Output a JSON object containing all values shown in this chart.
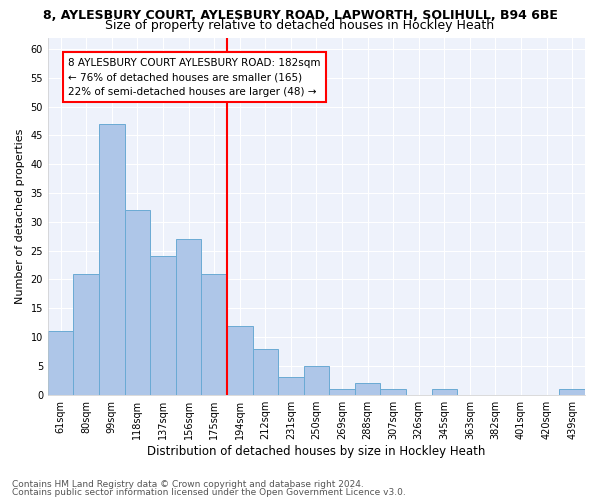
{
  "title1": "8, AYLESBURY COURT, AYLESBURY ROAD, LAPWORTH, SOLIHULL, B94 6BE",
  "title2": "Size of property relative to detached houses in Hockley Heath",
  "xlabel": "Distribution of detached houses by size in Hockley Heath",
  "ylabel": "Number of detached properties",
  "footer1": "Contains HM Land Registry data © Crown copyright and database right 2024.",
  "footer2": "Contains public sector information licensed under the Open Government Licence v3.0.",
  "categories": [
    "61sqm",
    "80sqm",
    "99sqm",
    "118sqm",
    "137sqm",
    "156sqm",
    "175sqm",
    "194sqm",
    "212sqm",
    "231sqm",
    "250sqm",
    "269sqm",
    "288sqm",
    "307sqm",
    "326sqm",
    "345sqm",
    "363sqm",
    "382sqm",
    "401sqm",
    "420sqm",
    "439sqm"
  ],
  "values": [
    11,
    21,
    47,
    32,
    24,
    27,
    21,
    12,
    8,
    3,
    5,
    1,
    2,
    1,
    0,
    1,
    0,
    0,
    0,
    0,
    1
  ],
  "bar_color": "#aec6e8",
  "bar_edge_color": "#6aaad4",
  "vline_color": "red",
  "vline_pos": 6.5,
  "annotation_text": "8 AYLESBURY COURT AYLESBURY ROAD: 182sqm\n← 76% of detached houses are smaller (165)\n22% of semi-detached houses are larger (48) →",
  "annotation_box_color": "white",
  "annotation_box_edge_color": "red",
  "ylim": [
    0,
    62
  ],
  "yticks": [
    0,
    5,
    10,
    15,
    20,
    25,
    30,
    35,
    40,
    45,
    50,
    55,
    60
  ],
  "background_color": "#eef2fb",
  "grid_color": "#ffffff",
  "title1_fontsize": 9,
  "title2_fontsize": 9,
  "xlabel_fontsize": 8.5,
  "ylabel_fontsize": 8,
  "tick_fontsize": 7,
  "footer_fontsize": 6.5,
  "annotation_fontsize": 7.5
}
